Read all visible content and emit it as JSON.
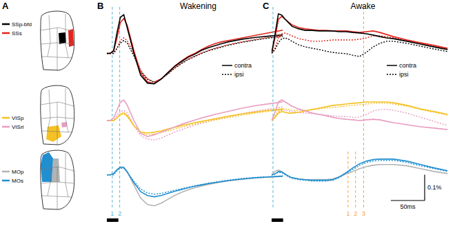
{
  "panel_labels": [
    "A",
    "B",
    "C"
  ],
  "brain_maps": [
    {
      "regions": [
        {
          "name": "SSp-bfd",
          "color": "#000000"
        },
        {
          "name": "SSs",
          "color": "#e2231a"
        }
      ]
    },
    {
      "regions": [
        {
          "name": "VISp",
          "color": "#f5c123"
        },
        {
          "name": "VISrl",
          "color": "#e99cc0"
        }
      ]
    },
    {
      "regions": [
        {
          "name": "MOp",
          "color": "#b3b3b3"
        },
        {
          "name": "MOs",
          "color": "#1f8fd1"
        }
      ]
    }
  ],
  "line_key": [
    {
      "label": "contra",
      "line_style": "solid"
    },
    {
      "label": "ipsi",
      "line_style": "dotted"
    }
  ],
  "scale_bar": {
    "x": 50,
    "x_label": "50ms",
    "y": 0.1,
    "y_label": "0.1%"
  },
  "chart_data": [
    {
      "type": "line",
      "title": "Wakening",
      "tick_labels": false,
      "x": [
        0,
        5,
        10,
        15,
        20,
        25,
        30,
        40,
        50,
        60,
        70,
        80,
        90,
        100,
        110,
        120,
        130,
        140,
        150,
        160,
        170,
        180,
        200,
        220,
        240,
        260
      ],
      "xlim": [
        0,
        270
      ],
      "ylim": [
        -0.14,
        0.18
      ],
      "annotations": [
        {
          "x": 8,
          "color": "#5ab4d6",
          "line_style": "dashed"
        },
        {
          "x": 19,
          "color": "#5ab4d6",
          "line_style": "dashed"
        }
      ],
      "series": [
        {
          "color": "#e2231a",
          "line_style": "dotted",
          "values": [
            0,
            0,
            0,
            0.02,
            0.05,
            0.06,
            0.05,
            0,
            -0.065,
            -0.098,
            -0.11,
            -0.098,
            -0.078,
            -0.056,
            -0.038,
            -0.022,
            -0.01,
            0.002,
            0.012,
            0.02,
            0.027,
            0.034,
            0.045,
            0.054,
            0.062,
            0.068
          ]
        },
        {
          "color": "#000000",
          "line_style": "dotted",
          "values": [
            0,
            0,
            0,
            0.02,
            0.04,
            0.05,
            0.04,
            -0.01,
            -0.07,
            -0.1,
            -0.112,
            -0.1,
            -0.08,
            -0.058,
            -0.04,
            -0.024,
            -0.012,
            0,
            0.01,
            0.018,
            0.025,
            0.032,
            0.043,
            0.052,
            0.06,
            0.066
          ]
        },
        {
          "color": "#e2231a",
          "line_style": "solid",
          "values": [
            0,
            0,
            0.01,
            0.06,
            0.12,
            0.135,
            0.11,
            0.01,
            -0.075,
            -0.11,
            -0.117,
            -0.1,
            -0.075,
            -0.05,
            -0.03,
            -0.012,
            0,
            0.015,
            0.028,
            0.038,
            0.045,
            0.05,
            0.06,
            0.07,
            0.08,
            0.09
          ]
        },
        {
          "color": "#000000",
          "line_style": "solid",
          "values": [
            0,
            0,
            0.01,
            0.08,
            0.14,
            0.15,
            0.1,
            0,
            -0.085,
            -0.115,
            -0.118,
            -0.1,
            -0.075,
            -0.05,
            -0.032,
            -0.015,
            -0.003,
            0.012,
            0.022,
            0.03,
            0.038,
            0.045,
            0.055,
            0.062,
            0.067,
            0.072
          ]
        }
      ]
    },
    {
      "type": "line",
      "tick_labels": false,
      "x": [
        0,
        5,
        10,
        15,
        20,
        25,
        30,
        40,
        50,
        60,
        70,
        80,
        90,
        100,
        110,
        120,
        130,
        140,
        150,
        160,
        170,
        180,
        200,
        220,
        240,
        260
      ],
      "xlim": [
        0,
        270
      ],
      "ylim": [
        -0.12,
        0.12
      ],
      "annotations": [
        {
          "x": 8,
          "color": "#5ab4d6",
          "line_style": "dashed"
        },
        {
          "x": 19,
          "color": "#5ab4d6",
          "line_style": "dashed"
        }
      ],
      "series": [
        {
          "color": "#e99cc0",
          "line_style": "dotted",
          "values": [
            0,
            0,
            0,
            0.02,
            0.035,
            0.04,
            0.03,
            -0.02,
            -0.058,
            -0.072,
            -0.075,
            -0.068,
            -0.056,
            -0.045,
            -0.035,
            -0.026,
            -0.018,
            -0.01,
            -0.003,
            0.004,
            0.01,
            0.016,
            0.027,
            0.037,
            0.045,
            0.053
          ]
        },
        {
          "color": "#f5c123",
          "line_style": "dotted",
          "values": [
            0,
            0,
            0,
            0.01,
            0.02,
            0.025,
            0.015,
            -0.02,
            -0.045,
            -0.055,
            -0.052,
            -0.047,
            -0.04,
            -0.033,
            -0.026,
            -0.019,
            -0.013,
            -0.008,
            -0.003,
            0.002,
            0.007,
            0.012,
            0.021,
            0.029,
            0.036,
            0.042
          ]
        },
        {
          "color": "#f5c123",
          "line_style": "solid",
          "values": [
            0,
            0,
            0,
            0.01,
            0.025,
            0.03,
            0.02,
            -0.02,
            -0.045,
            -0.048,
            -0.045,
            -0.04,
            -0.033,
            -0.026,
            -0.02,
            -0.014,
            -0.008,
            -0.003,
            0.002,
            0.007,
            0.012,
            0.017,
            0.026,
            0.033,
            0.04,
            0.045
          ]
        },
        {
          "color": "#e99cc0",
          "line_style": "solid",
          "values": [
            0,
            0,
            0.01,
            0.04,
            0.072,
            0.08,
            0.06,
            0,
            -0.05,
            -0.062,
            -0.055,
            -0.045,
            -0.035,
            -0.025,
            -0.015,
            -0.006,
            0.002,
            0.01,
            0.017,
            0.024,
            0.03,
            0.036,
            0.048,
            0.058,
            0.065,
            0.072
          ]
        }
      ]
    },
    {
      "type": "line",
      "tick_labels": false,
      "x": [
        0,
        5,
        10,
        15,
        20,
        25,
        30,
        40,
        50,
        60,
        70,
        80,
        90,
        100,
        110,
        120,
        130,
        140,
        150,
        160,
        170,
        180,
        200,
        220,
        240,
        260
      ],
      "xlim": [
        0,
        270
      ],
      "ylim": [
        -0.13,
        0.09
      ],
      "stimulus": [
        0,
        17
      ],
      "annotations": [
        {
          "x": 8,
          "color": "#5ab4d6",
          "line_style": "dashed",
          "label": "1"
        },
        {
          "x": 19,
          "color": "#5ab4d6",
          "line_style": "dashed",
          "label": "2"
        }
      ],
      "series": [
        {
          "color": "#1f8fd1",
          "line_style": "dotted",
          "values": [
            0,
            0,
            0,
            0.015,
            0.025,
            0.025,
            0.01,
            -0.025,
            -0.055,
            -0.07,
            -0.075,
            -0.072,
            -0.066,
            -0.06,
            -0.054,
            -0.048,
            -0.042,
            -0.037,
            -0.032,
            -0.028,
            -0.024,
            -0.02,
            -0.014,
            -0.01,
            -0.007,
            -0.004
          ]
        },
        {
          "color": "#b3b3b3",
          "line_style": "solid",
          "values": [
            0,
            0,
            0.005,
            0.02,
            0.03,
            0.03,
            0.012,
            -0.04,
            -0.09,
            -0.115,
            -0.12,
            -0.11,
            -0.095,
            -0.08,
            -0.068,
            -0.058,
            -0.05,
            -0.043,
            -0.037,
            -0.032,
            -0.027,
            -0.023,
            -0.017,
            -0.012,
            -0.009,
            -0.006
          ]
        },
        {
          "color": "#1f8fd1",
          "line_style": "solid",
          "values": [
            0,
            0,
            0.005,
            0.02,
            0.03,
            0.028,
            0.012,
            -0.03,
            -0.065,
            -0.08,
            -0.085,
            -0.08,
            -0.072,
            -0.064,
            -0.057,
            -0.05,
            -0.044,
            -0.039,
            -0.034,
            -0.03,
            -0.026,
            -0.022,
            -0.016,
            -0.011,
            -0.008,
            -0.005
          ]
        }
      ]
    },
    {
      "type": "line",
      "title": "Awake",
      "tick_labels": false,
      "x": [
        0,
        5,
        10,
        15,
        20,
        25,
        30,
        40,
        50,
        60,
        70,
        80,
        90,
        100,
        110,
        120,
        130,
        140,
        150,
        160,
        170,
        180,
        200,
        220,
        240,
        260
      ],
      "xlim": [
        0,
        270
      ],
      "ylim": [
        -0.14,
        0.18
      ],
      "annotations": [
        {
          "x": 2,
          "color": "#5ab4d6",
          "line_style": "dashed"
        },
        {
          "x": 136,
          "color": "#f5a142",
          "line_style": "dashed"
        }
      ],
      "series": [
        {
          "color": "#e2231a",
          "line_style": "dotted",
          "values": [
            0,
            0.02,
            0.06,
            0.076,
            0.079,
            0.073,
            0.068,
            0.057,
            0.052,
            0.047,
            0.047,
            0.049,
            0.052,
            0.052,
            0.052,
            0.052,
            0.055,
            0.06,
            0.068,
            0.068,
            0.065,
            0.06,
            0.049,
            0.039,
            0.028,
            0.017
          ]
        },
        {
          "color": "#000000",
          "line_style": "dotted",
          "values": [
            0,
            0.015,
            0.041,
            0.057,
            0.06,
            0.055,
            0.047,
            0.033,
            0.025,
            0.02,
            0.015,
            0.009,
            0.004,
            0.001,
            -0.001,
            -0.007,
            -0.012,
            0.004,
            0.025,
            0.039,
            0.047,
            0.047,
            0.039,
            0.028,
            0.017,
            0.007
          ]
        },
        {
          "color": "#e2231a",
          "line_style": "solid",
          "values": [
            0,
            0.06,
            0.132,
            0.143,
            0.132,
            0.121,
            0.111,
            0.1,
            0.095,
            0.092,
            0.089,
            0.089,
            0.087,
            0.087,
            0.087,
            0.084,
            0.081,
            0.084,
            0.087,
            0.081,
            0.073,
            0.065,
            0.052,
            0.041,
            0.031,
            0.02
          ]
        },
        {
          "color": "#000000",
          "line_style": "solid",
          "values": [
            0,
            0.073,
            0.153,
            0.148,
            0.132,
            0.119,
            0.105,
            0.095,
            0.089,
            0.089,
            0.087,
            0.087,
            0.087,
            0.084,
            0.084,
            0.081,
            0.079,
            0.076,
            0.071,
            0.065,
            0.06,
            0.057,
            0.047,
            0.036,
            0.025,
            0.015
          ]
        }
      ]
    },
    {
      "type": "line",
      "tick_labels": false,
      "x": [
        0,
        5,
        10,
        15,
        20,
        25,
        30,
        40,
        50,
        60,
        70,
        80,
        90,
        100,
        110,
        120,
        130,
        140,
        150,
        160,
        170,
        180,
        200,
        220,
        240,
        260
      ],
      "xlim": [
        0,
        270
      ],
      "ylim": [
        -0.12,
        0.12
      ],
      "annotations": [
        {
          "x": 2,
          "color": "#5ab4d6",
          "line_style": "dashed"
        },
        {
          "x": 136,
          "color": "#f5a142",
          "line_style": "dashed"
        }
      ],
      "series": [
        {
          "color": "#e99cc0",
          "line_style": "dotted",
          "values": [
            0,
            0.013,
            0.032,
            0.04,
            0.04,
            0.037,
            0.035,
            0.032,
            0.029,
            0.027,
            0.024,
            0.021,
            0.019,
            0.016,
            0.016,
            0.013,
            0.013,
            0.024,
            0.037,
            0.043,
            0.043,
            0.04,
            0.029,
            0.013,
            -0.003,
            -0.019
          ]
        },
        {
          "color": "#f5c123",
          "line_style": "dotted",
          "values": [
            0,
            0.019,
            0.037,
            0.045,
            0.045,
            0.043,
            0.04,
            0.04,
            0.04,
            0.043,
            0.045,
            0.048,
            0.051,
            0.053,
            0.056,
            0.059,
            0.061,
            0.064,
            0.067,
            0.067,
            0.067,
            0.064,
            0.056,
            0.043,
            0.032,
            0.021
          ]
        },
        {
          "color": "#f5c123",
          "line_style": "solid",
          "values": [
            0,
            0.013,
            0.029,
            0.035,
            0.032,
            0.029,
            0.029,
            0.032,
            0.037,
            0.043,
            0.048,
            0.053,
            0.059,
            0.061,
            0.064,
            0.067,
            0.069,
            0.072,
            0.072,
            0.072,
            0.072,
            0.069,
            0.059,
            0.045,
            0.035,
            0.024
          ]
        },
        {
          "color": "#e99cc0",
          "line_style": "solid",
          "values": [
            0,
            0.032,
            0.072,
            0.08,
            0.072,
            0.064,
            0.056,
            0.045,
            0.037,
            0.029,
            0.024,
            0.019,
            0.013,
            0.008,
            0.005,
            0.003,
            0,
            0.003,
            0.005,
            0.003,
            -0.003,
            -0.008,
            -0.016,
            -0.024,
            -0.029,
            -0.035
          ]
        }
      ]
    },
    {
      "type": "line",
      "tick_labels": false,
      "x": [
        0,
        5,
        10,
        15,
        20,
        25,
        30,
        40,
        50,
        60,
        70,
        80,
        90,
        100,
        110,
        120,
        130,
        140,
        150,
        160,
        170,
        180,
        200,
        220,
        240,
        260
      ],
      "xlim": [
        0,
        270
      ],
      "ylim": [
        -0.13,
        0.09
      ],
      "stimulus": [
        0,
        17
      ],
      "annotations": [
        {
          "x": 2,
          "color": "#5ab4d6",
          "line_style": "dashed"
        },
        {
          "x": 113,
          "color": "#f5a142",
          "line_style": "dashed",
          "label": "1"
        },
        {
          "x": 124,
          "color": "#f5a142",
          "line_style": "dashed",
          "label": "2"
        },
        {
          "x": 136,
          "color": "#f5a142",
          "line_style": "dashed",
          "label": "3"
        }
      ],
      "series": [
        {
          "color": "#1f8fd1",
          "line_style": "dotted",
          "values": [
            0,
            0.003,
            0.01,
            0.008,
            0,
            -0.008,
            -0.013,
            -0.019,
            -0.021,
            -0.024,
            -0.024,
            -0.024,
            -0.021,
            -0.011,
            0.005,
            0.021,
            0.037,
            0.048,
            0.053,
            0.056,
            0.056,
            0.056,
            0.048,
            0.035,
            0.024,
            0.013
          ]
        },
        {
          "color": "#b3b3b3",
          "line_style": "solid",
          "values": [
            0,
            0.013,
            0.019,
            0.013,
            0.003,
            -0.005,
            -0.011,
            -0.016,
            -0.019,
            -0.019,
            -0.019,
            -0.019,
            -0.016,
            -0.008,
            0.003,
            0.013,
            0.024,
            0.032,
            0.037,
            0.04,
            0.04,
            0.04,
            0.035,
            0.024,
            0.013,
            0.005
          ]
        },
        {
          "color": "#1f8fd1",
          "line_style": "solid",
          "values": [
            0,
            0.003,
            0.013,
            0.011,
            0.003,
            -0.005,
            -0.011,
            -0.016,
            -0.019,
            -0.021,
            -0.021,
            -0.021,
            -0.019,
            -0.008,
            0.008,
            0.027,
            0.043,
            0.053,
            0.059,
            0.061,
            0.061,
            0.061,
            0.053,
            0.04,
            0.027,
            0.016
          ]
        }
      ]
    }
  ]
}
